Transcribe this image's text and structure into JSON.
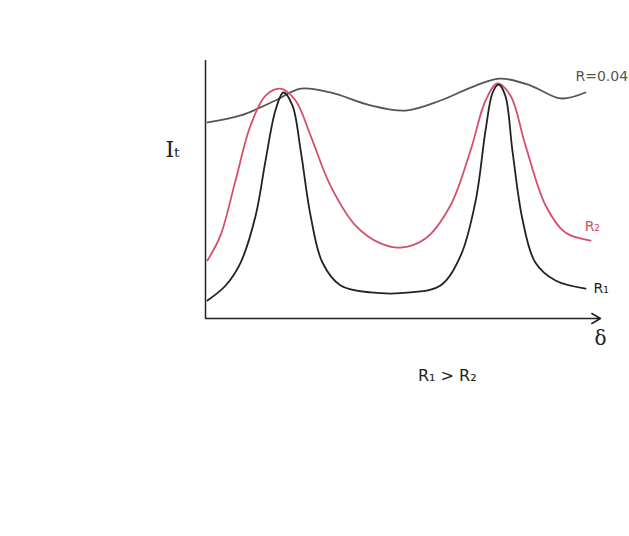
{
  "chart_data": {
    "type": "line",
    "xlabel": "δ",
    "ylabel": "Iₜ",
    "annotation": "R₁ > R₂",
    "xlim": [
      0,
      10
    ],
    "ylim": [
      0,
      10
    ],
    "xticks": [],
    "yticks": [],
    "tick_labels": false,
    "series": [
      {
        "name": "R=0.04",
        "color": "#555555",
        "x": [
          0.05,
          0.89,
          1.77,
          2.41,
          3.16,
          4.18,
          5.06,
          5.95,
          6.84,
          7.47,
          8.23,
          8.99,
          9.62
        ],
        "values": [
          7.6,
          7.87,
          8.45,
          8.91,
          8.76,
          8.26,
          8.06,
          8.45,
          9.03,
          9.3,
          9.03,
          8.53,
          8.76
        ]
      },
      {
        "name": "R₂",
        "color": "#d4506a",
        "x": [
          0.05,
          0.38,
          0.76,
          1.14,
          1.52,
          1.9,
          2.28,
          2.66,
          3.16,
          3.8,
          4.43,
          4.94,
          5.57,
          6.2,
          6.71,
          7.09,
          7.39,
          7.72,
          8.1,
          8.61,
          9.11,
          9.75
        ],
        "values": [
          2.25,
          3.22,
          5.35,
          7.48,
          8.64,
          8.91,
          8.45,
          7.09,
          5.16,
          3.6,
          2.91,
          2.75,
          3.1,
          4.38,
          6.51,
          8.45,
          9.11,
          8.64,
          6.71,
          4.38,
          3.33,
          3.02
        ]
      },
      {
        "name": "R₁",
        "color": "#222222",
        "x": [
          0.05,
          0.51,
          0.89,
          1.27,
          1.52,
          1.77,
          1.97,
          2.2,
          2.41,
          2.66,
          2.96,
          3.42,
          4.18,
          5.19,
          5.95,
          6.46,
          6.84,
          7.09,
          7.27,
          7.42,
          7.59,
          7.77,
          8.03,
          8.35,
          8.86,
          9.62
        ],
        "values": [
          0.7,
          1.28,
          2.17,
          3.99,
          6.12,
          8.06,
          8.76,
          8.26,
          6.51,
          3.99,
          2.17,
          1.28,
          1.01,
          1.01,
          1.28,
          2.44,
          4.57,
          7.29,
          8.76,
          9.07,
          8.64,
          6.51,
          3.8,
          2.17,
          1.47,
          1.16
        ]
      }
    ]
  }
}
